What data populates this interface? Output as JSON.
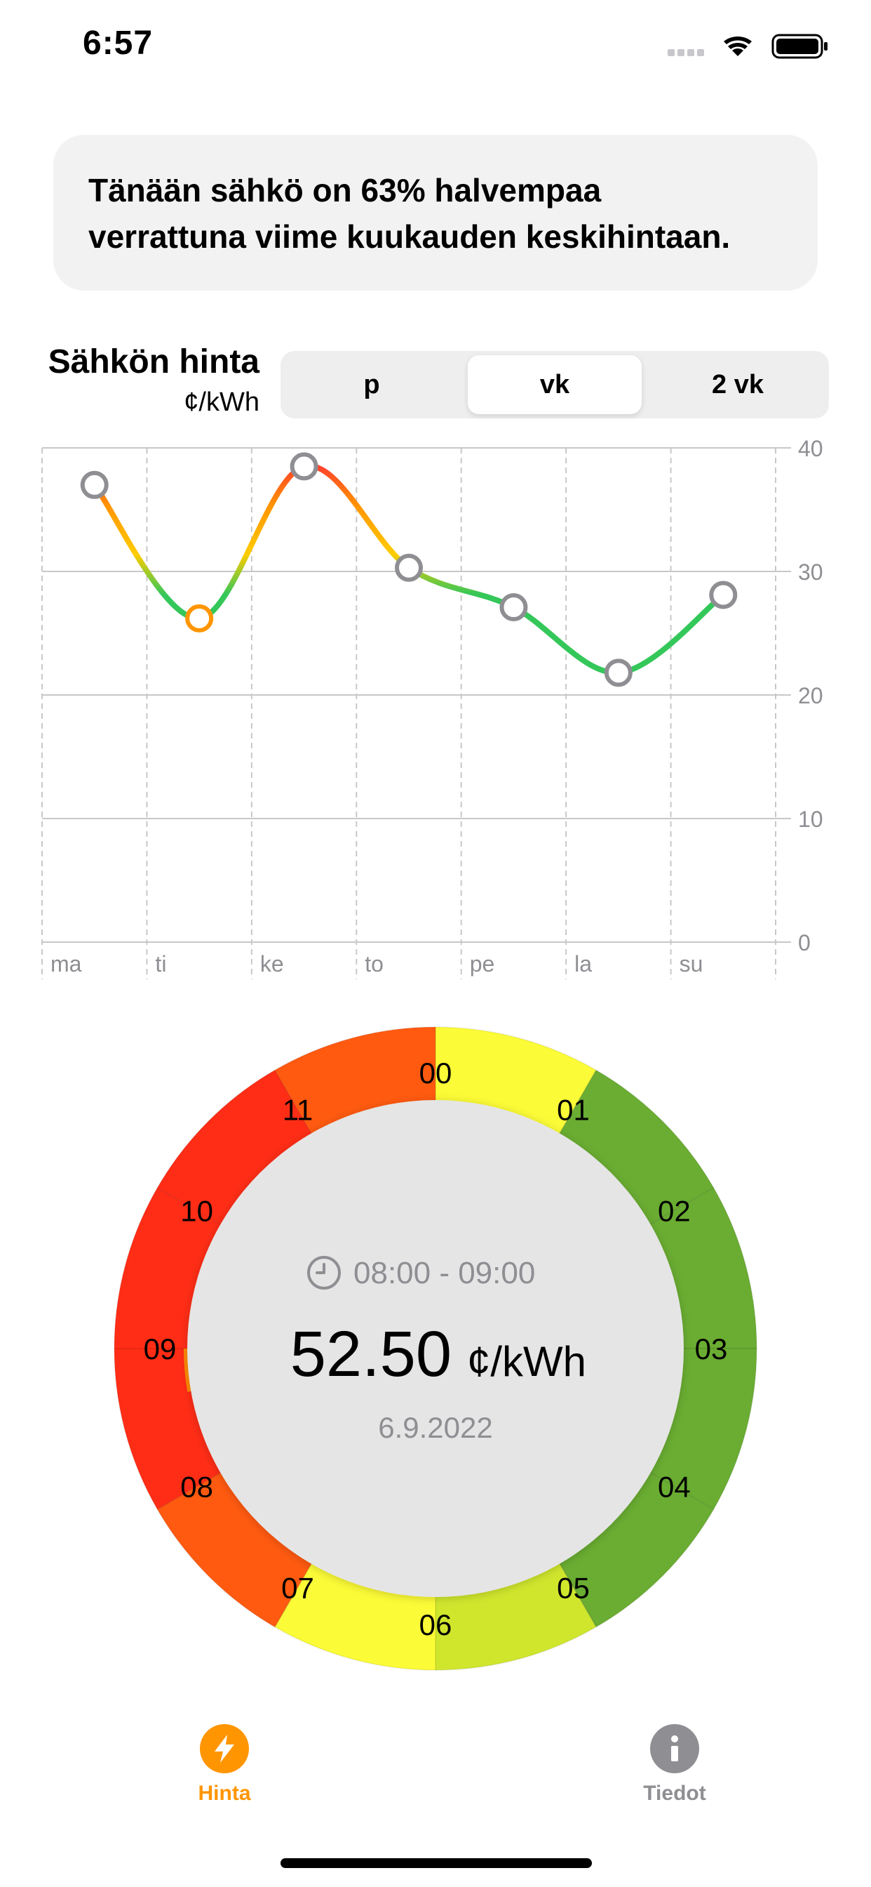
{
  "status_bar": {
    "time": "6:57"
  },
  "info": {
    "line1": "Tänään sähkö on 63% halvempaa",
    "line2": "verrattuna viime kuukauden keskihintaan."
  },
  "chart_header": {
    "title": "Sähkön hinta",
    "unit": "¢/kWh"
  },
  "segmented": {
    "options": [
      "p",
      "vk",
      "2 vk"
    ],
    "selected": "vk"
  },
  "chart_data": {
    "type": "line",
    "categories": [
      "ma",
      "ti",
      "ke",
      "to",
      "pe",
      "la",
      "su"
    ],
    "y_ticks": [
      "0",
      "10",
      "20",
      "30",
      "40"
    ],
    "ylim": [
      0,
      40
    ],
    "grid": true,
    "series": [
      {
        "values": [
          37.0,
          26.2,
          38.5,
          30.3,
          27.1,
          21.8,
          28.1
        ]
      }
    ],
    "highlight_index": 1,
    "colors": {
      "green": "#34c759",
      "yellow": "#ffcc00",
      "orange": "#ff9500",
      "red": "#ff3b30",
      "marker": "#8e8e93"
    }
  },
  "gauge": {
    "time_range": "08:00 - 09:00",
    "price": "52.50",
    "unit": "¢/kWh",
    "date": "6.9.2022",
    "hours": [
      {
        "label": "00",
        "color": "#fbfb37"
      },
      {
        "label": "01",
        "color": "#6aad32"
      },
      {
        "label": "02",
        "color": "#6aad32"
      },
      {
        "label": "03",
        "color": "#6aad32"
      },
      {
        "label": "04",
        "color": "#6aad32"
      },
      {
        "label": "05",
        "color": "#cfe62d"
      },
      {
        "label": "06",
        "color": "#fbfb37"
      },
      {
        "label": "07",
        "color": "#ff5a10"
      },
      {
        "label": "08",
        "color": "#ff2d16"
      },
      {
        "label": "09",
        "color": "#ff2d16"
      },
      {
        "label": "10",
        "color": "#ff2d16"
      },
      {
        "label": "11",
        "color": "#ff5a10"
      }
    ],
    "progress": 0.33,
    "progress_color": "#ff8c00"
  },
  "tabs": [
    {
      "label": "Hinta",
      "icon": "bolt-icon",
      "active": true,
      "color": "#ff9500"
    },
    {
      "label": "Tiedot",
      "icon": "info-icon",
      "active": false,
      "color": "#8e8e93"
    }
  ]
}
